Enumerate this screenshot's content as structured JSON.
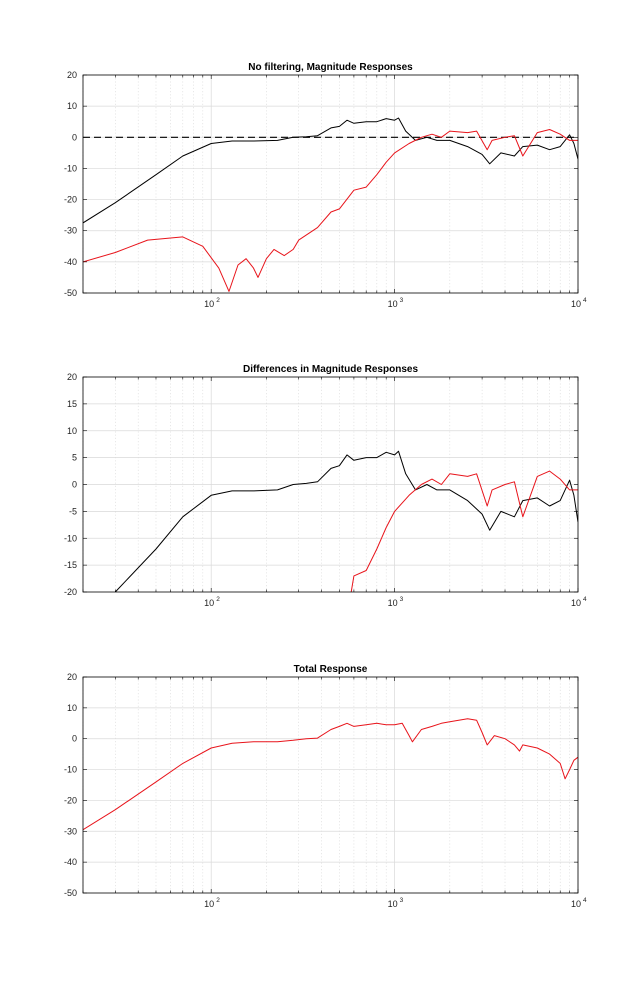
{
  "chart_data": [
    {
      "type": "line",
      "title": "No filtering, Magnitude Responses",
      "x_scale": "log",
      "xlim": [
        20,
        10000
      ],
      "ylim": [
        -50,
        20
      ],
      "yticks": [
        -50,
        -40,
        -30,
        -20,
        -10,
        0,
        10,
        20
      ],
      "xtick_labels": [
        "10",
        "10",
        "10"
      ],
      "xtick_exponents": [
        "2",
        "3",
        "4"
      ],
      "xtick_values": [
        100,
        1000,
        10000
      ],
      "grid": true,
      "colors": {
        "black": "#000000",
        "red": "#e8141b",
        "grid": "#d9d9d9"
      },
      "series": [
        {
          "color": "#000000",
          "points": [
            [
              20,
              -27.5
            ],
            [
              30,
              -21
            ],
            [
              50,
              -12
            ],
            [
              70,
              -6
            ],
            [
              100,
              -2
            ],
            [
              130,
              -1.2
            ],
            [
              170,
              -1.2
            ],
            [
              230,
              -1
            ],
            [
              280,
              0
            ],
            [
              330,
              0.2
            ],
            [
              380,
              0.5
            ],
            [
              450,
              3
            ],
            [
              500,
              3.5
            ],
            [
              550,
              5.5
            ],
            [
              600,
              4.5
            ],
            [
              700,
              5
            ],
            [
              800,
              5
            ],
            [
              900,
              6
            ],
            [
              1000,
              5.5
            ],
            [
              1050,
              6.2
            ],
            [
              1150,
              2
            ],
            [
              1300,
              -1
            ],
            [
              1500,
              0
            ],
            [
              1700,
              -1
            ],
            [
              2000,
              -1
            ],
            [
              2500,
              -3
            ],
            [
              3000,
              -5.5
            ],
            [
              3300,
              -8.5
            ],
            [
              3800,
              -5
            ],
            [
              4500,
              -6
            ],
            [
              5000,
              -3
            ],
            [
              6000,
              -2.5
            ],
            [
              7000,
              -4
            ],
            [
              8000,
              -3
            ],
            [
              9000,
              0.8
            ],
            [
              9500,
              -2
            ],
            [
              10000,
              -7
            ]
          ]
        },
        {
          "color": "#000000",
          "dashed": true,
          "points": [
            [
              20,
              0
            ],
            [
              10000,
              0
            ]
          ]
        },
        {
          "color": "#e8141b",
          "points": [
            [
              20,
              -40
            ],
            [
              30,
              -37
            ],
            [
              45,
              -33
            ],
            [
              70,
              -32
            ],
            [
              90,
              -35
            ],
            [
              110,
              -42
            ],
            [
              125,
              -49.5
            ],
            [
              140,
              -41
            ],
            [
              155,
              -39
            ],
            [
              170,
              -42
            ],
            [
              180,
              -45
            ],
            [
              200,
              -39
            ],
            [
              220,
              -36
            ],
            [
              250,
              -38
            ],
            [
              280,
              -36
            ],
            [
              300,
              -33
            ],
            [
              380,
              -29
            ],
            [
              450,
              -24
            ],
            [
              500,
              -23
            ],
            [
              600,
              -17
            ],
            [
              700,
              -16
            ],
            [
              800,
              -12
            ],
            [
              900,
              -8
            ],
            [
              1000,
              -5
            ],
            [
              1200,
              -2
            ],
            [
              1400,
              0
            ],
            [
              1600,
              1
            ],
            [
              1800,
              0
            ],
            [
              2000,
              2
            ],
            [
              2500,
              1.5
            ],
            [
              2800,
              2
            ],
            [
              3200,
              -4
            ],
            [
              3400,
              -1
            ],
            [
              4000,
              0
            ],
            [
              4500,
              0.5
            ],
            [
              5000,
              -6
            ],
            [
              6000,
              1.5
            ],
            [
              7000,
              2.5
            ],
            [
              8000,
              1
            ],
            [
              9000,
              -1
            ],
            [
              10000,
              -1
            ]
          ]
        }
      ]
    },
    {
      "type": "line",
      "title": "Differences in Magnitude Responses",
      "x_scale": "log",
      "xlim": [
        20,
        10000
      ],
      "ylim": [
        -20,
        20
      ],
      "yticks": [
        -20,
        -15,
        -10,
        -5,
        0,
        5,
        10,
        15,
        20
      ],
      "xtick_labels": [
        "10",
        "10",
        "10"
      ],
      "xtick_exponents": [
        "2",
        "3",
        "4"
      ],
      "xtick_values": [
        100,
        1000,
        10000
      ],
      "grid": true,
      "colors": {
        "black": "#000000",
        "red": "#e8141b",
        "grid": "#d9d9d9"
      },
      "series": [
        {
          "color": "#000000",
          "points": [
            [
              30,
              -20
            ],
            [
              50,
              -12
            ],
            [
              70,
              -6
            ],
            [
              100,
              -2
            ],
            [
              130,
              -1.2
            ],
            [
              170,
              -1.2
            ],
            [
              230,
              -1
            ],
            [
              280,
              0
            ],
            [
              330,
              0.2
            ],
            [
              380,
              0.5
            ],
            [
              450,
              3
            ],
            [
              500,
              3.5
            ],
            [
              550,
              5.5
            ],
            [
              600,
              4.5
            ],
            [
              700,
              5
            ],
            [
              800,
              5
            ],
            [
              900,
              6
            ],
            [
              1000,
              5.5
            ],
            [
              1050,
              6.2
            ],
            [
              1150,
              2
            ],
            [
              1300,
              -1
            ],
            [
              1500,
              0
            ],
            [
              1700,
              -1
            ],
            [
              2000,
              -1
            ],
            [
              2500,
              -3
            ],
            [
              3000,
              -5.5
            ],
            [
              3300,
              -8.5
            ],
            [
              3800,
              -5
            ],
            [
              4500,
              -6
            ],
            [
              5000,
              -3
            ],
            [
              6000,
              -2.5
            ],
            [
              7000,
              -4
            ],
            [
              8000,
              -3
            ],
            [
              9000,
              0.8
            ],
            [
              9500,
              -2
            ],
            [
              10000,
              -7
            ]
          ]
        },
        {
          "color": "#e8141b",
          "points": [
            [
              580,
              -20
            ],
            [
              600,
              -17
            ],
            [
              700,
              -16
            ],
            [
              800,
              -12
            ],
            [
              900,
              -8
            ],
            [
              1000,
              -5
            ],
            [
              1200,
              -2
            ],
            [
              1400,
              0
            ],
            [
              1600,
              1
            ],
            [
              1800,
              0
            ],
            [
              2000,
              2
            ],
            [
              2500,
              1.5
            ],
            [
              2800,
              2
            ],
            [
              3200,
              -4
            ],
            [
              3400,
              -1
            ],
            [
              4000,
              0
            ],
            [
              4500,
              0.5
            ],
            [
              5000,
              -6
            ],
            [
              6000,
              1.5
            ],
            [
              7000,
              2.5
            ],
            [
              8000,
              1
            ],
            [
              9000,
              -1
            ],
            [
              10000,
              -1
            ]
          ]
        }
      ]
    },
    {
      "type": "line",
      "title": "Total Response",
      "x_scale": "log",
      "xlim": [
        20,
        10000
      ],
      "ylim": [
        -50,
        20
      ],
      "yticks": [
        -50,
        -40,
        -30,
        -20,
        -10,
        0,
        10,
        20
      ],
      "xtick_labels": [
        "10",
        "10",
        "10"
      ],
      "xtick_exponents": [
        "2",
        "3",
        "4"
      ],
      "xtick_values": [
        100,
        1000,
        10000
      ],
      "grid": true,
      "colors": {
        "red": "#e8141b",
        "grid": "#d9d9d9"
      },
      "series": [
        {
          "color": "#e8141b",
          "points": [
            [
              20,
              -29.5
            ],
            [
              30,
              -23
            ],
            [
              50,
              -14
            ],
            [
              70,
              -8
            ],
            [
              100,
              -3
            ],
            [
              130,
              -1.5
            ],
            [
              170,
              -1
            ],
            [
              230,
              -1
            ],
            [
              280,
              -0.5
            ],
            [
              330,
              0
            ],
            [
              380,
              0.2
            ],
            [
              450,
              3
            ],
            [
              500,
              4
            ],
            [
              550,
              5
            ],
            [
              600,
              4
            ],
            [
              700,
              4.5
            ],
            [
              800,
              5
            ],
            [
              900,
              4.5
            ],
            [
              1000,
              4.5
            ],
            [
              1100,
              5
            ],
            [
              1200,
              1
            ],
            [
              1250,
              -1
            ],
            [
              1400,
              3
            ],
            [
              1600,
              4
            ],
            [
              1800,
              5
            ],
            [
              2000,
              5.5
            ],
            [
              2500,
              6.5
            ],
            [
              2800,
              6
            ],
            [
              3000,
              2
            ],
            [
              3200,
              -2
            ],
            [
              3500,
              1
            ],
            [
              4000,
              0
            ],
            [
              4500,
              -2
            ],
            [
              4800,
              -4
            ],
            [
              5000,
              -2
            ],
            [
              6000,
              -3
            ],
            [
              7000,
              -5
            ],
            [
              8000,
              -8
            ],
            [
              8500,
              -13
            ],
            [
              9000,
              -10
            ],
            [
              9500,
              -7
            ],
            [
              10000,
              -6
            ]
          ]
        }
      ]
    }
  ]
}
